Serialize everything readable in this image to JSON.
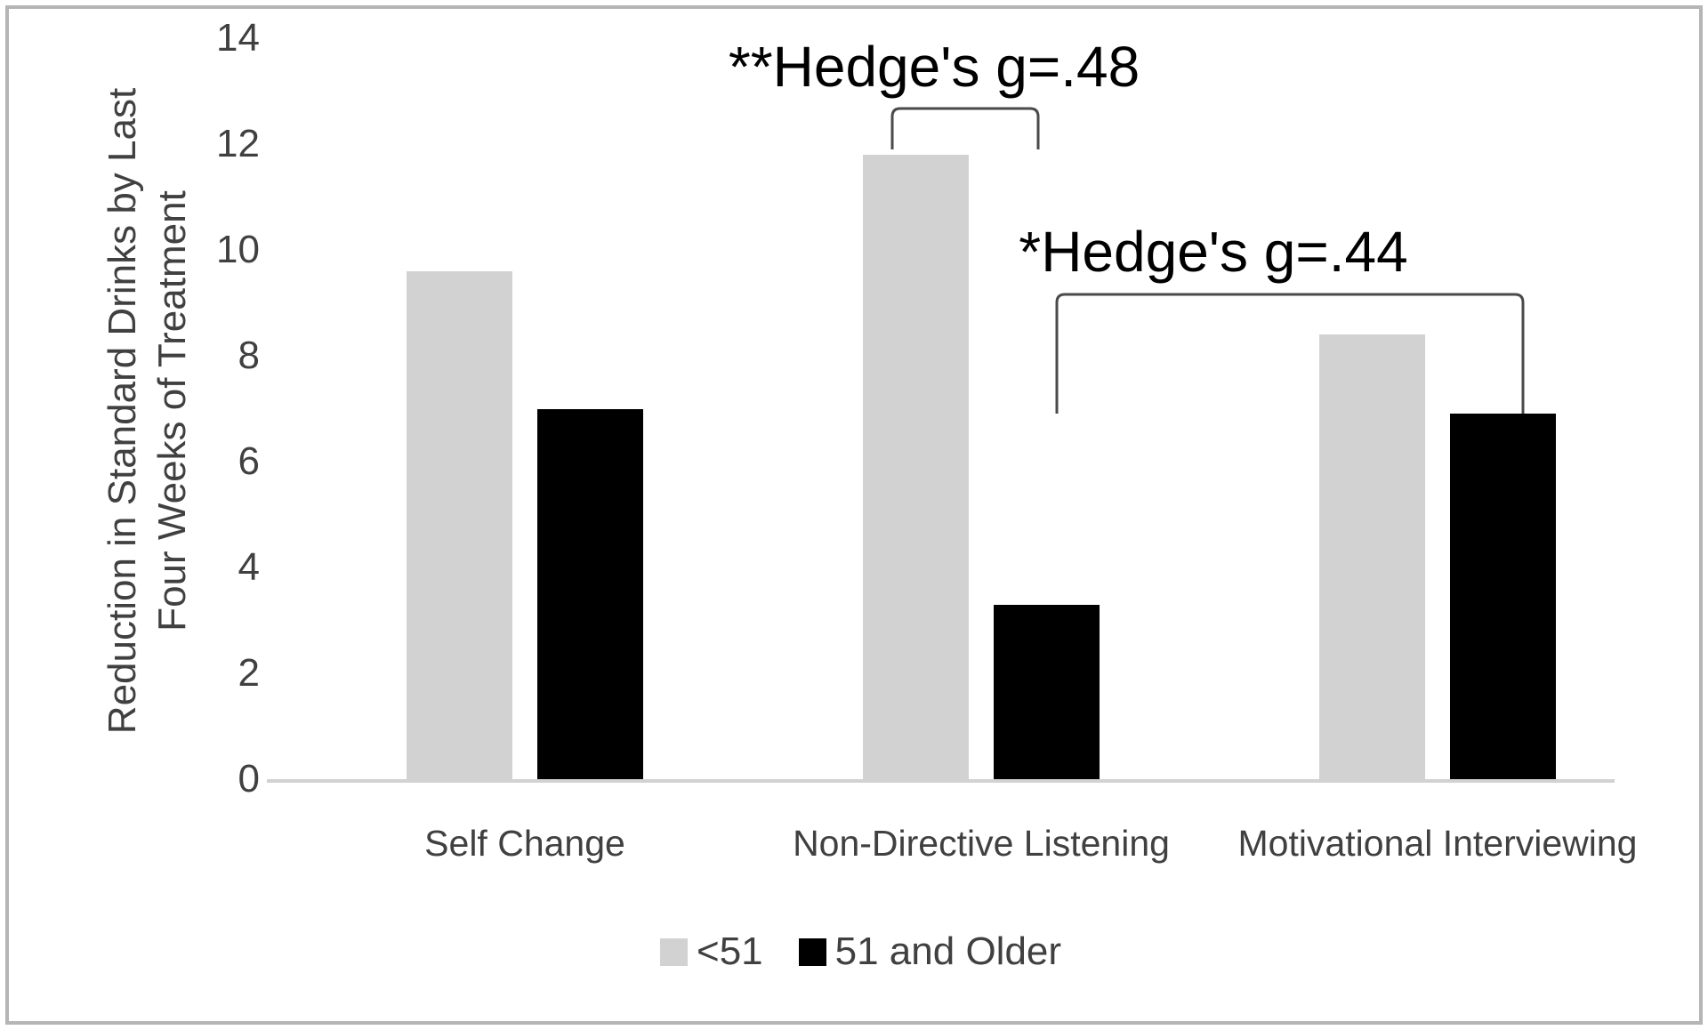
{
  "chart_data": {
    "type": "bar",
    "title": "",
    "categories": [
      "Self Change",
      "Non-Directive Listening",
      "Motivational Interviewing"
    ],
    "series": [
      {
        "name": "<51",
        "color": "#d2d2d2",
        "values": [
          9.6,
          11.8,
          8.4
        ]
      },
      {
        "name": "51 and Older",
        "color": "#000000",
        "values": [
          7.0,
          3.3,
          6.9
        ]
      }
    ],
    "ylabel_lines": [
      "Reduction in Standard Drinks by Last",
      "Four Weeks of Treatment"
    ],
    "xlabel": "",
    "yticks": [
      14,
      12,
      10,
      8,
      6,
      4,
      2,
      0
    ],
    "ylim": [
      0,
      14
    ],
    "grid": false,
    "legend_position": "bottom-center",
    "annotations": [
      {
        "text": "**Hedge's g=.48",
        "category": "Non-Directive Listening",
        "compares": [
          "<51",
          "51 and Older"
        ]
      },
      {
        "text": "*Hedge's g=.44",
        "category": "Motivational Interviewing",
        "compares": [
          "<51",
          "51 and Older"
        ]
      }
    ],
    "colors": {
      "bar_under51": "#d2d2d2",
      "bar_51_older": "#000000",
      "axis_line": "#d2d2d2",
      "text": "#404040",
      "annotation_text": "#000000",
      "bracket": "#4a4a4a",
      "frame_border": "#b5b5b5"
    }
  }
}
